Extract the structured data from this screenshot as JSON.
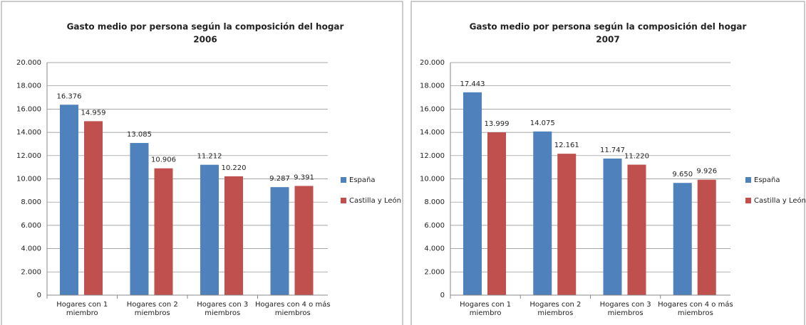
{
  "chart_data": [
    {
      "type": "bar",
      "title": "Gasto medio por persona según la composición del hogar",
      "subtitle": "2006",
      "categories": [
        "Hogares con 1 miembro",
        "Hogares con 2 miembros",
        "Hogares con 3 miembros",
        "Hogares con 4 o más miembros"
      ],
      "series": [
        {
          "name": "España",
          "color": "#4f81bd",
          "values": [
            16376,
            13085,
            11212,
            9287
          ],
          "value_labels": [
            "16.376",
            "13.085",
            "11.212",
            "9.287"
          ]
        },
        {
          "name": "Castilla y León",
          "color": "#c0504d",
          "values": [
            14959,
            10906,
            10220,
            9391
          ],
          "value_labels": [
            "14.959",
            "10.906",
            "10.220",
            "9.391"
          ]
        }
      ],
      "ylim": [
        0,
        20000
      ],
      "yticks": [
        0,
        {
          "value": 2000,
          "label": "2.000"
        },
        {
          "value": 4000,
          "label": "4.000"
        },
        {
          "value": 6000,
          "label": "6.000"
        },
        {
          "value": 8000,
          "label": "8.000"
        },
        {
          "value": 10000,
          "label": "10.000"
        },
        {
          "value": 12000,
          "label": "12.000"
        },
        {
          "value": 14000,
          "label": "14.000"
        },
        {
          "value": 16000,
          "label": "16.000"
        },
        {
          "value": 18000,
          "label": "18.000"
        },
        {
          "value": 20000,
          "label": "20.000"
        }
      ],
      "grid": true,
      "legend": "right"
    },
    {
      "type": "bar",
      "title": "Gasto medio por persona según la composición del hogar",
      "subtitle": "2007",
      "categories": [
        "Hogares con 1 miembro",
        "Hogares con 2 miembros",
        "Hogares con 3 miembros",
        "Hogares con 4 o más miembros"
      ],
      "series": [
        {
          "name": "España",
          "color": "#4f81bd",
          "values": [
            17443,
            14075,
            11747,
            9650
          ],
          "value_labels": [
            "17.443",
            "14.075",
            "11.747",
            "9.650"
          ]
        },
        {
          "name": "Castilla y León",
          "color": "#c0504d",
          "values": [
            13999,
            12161,
            11220,
            9926
          ],
          "value_labels": [
            "13.999",
            "12.161",
            "11.220",
            "9.926"
          ]
        }
      ],
      "ylim": [
        0,
        20000
      ],
      "yticks": [
        0,
        {
          "value": 2000,
          "label": "2.000"
        },
        {
          "value": 4000,
          "label": "4.000"
        },
        {
          "value": 6000,
          "label": "6.000"
        },
        {
          "value": 8000,
          "label": "8.000"
        },
        {
          "value": 10000,
          "label": "10.000"
        },
        {
          "value": 12000,
          "label": "12.000"
        },
        {
          "value": 14000,
          "label": "14.000"
        },
        {
          "value": 16000,
          "label": "16.000"
        },
        {
          "value": 18000,
          "label": "18.000"
        },
        {
          "value": 20000,
          "label": "20.000"
        }
      ],
      "grid": true,
      "legend": "right"
    }
  ]
}
